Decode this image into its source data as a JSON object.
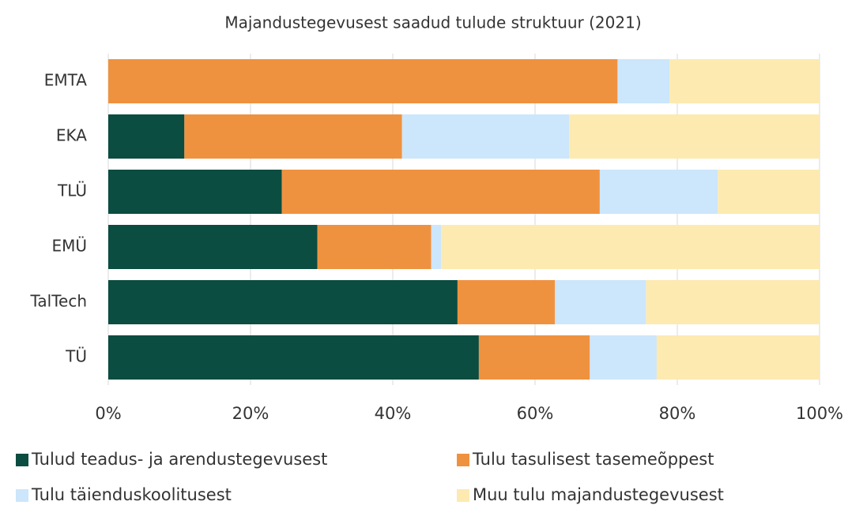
{
  "chart_data": {
    "type": "stacked_barh",
    "title": "Majandustegevusest saadud tulude struktuur (2021)",
    "categories": [
      "EMTA",
      "EKA",
      "TLÜ",
      "EMÜ",
      "TalTech",
      "TÜ"
    ],
    "series": [
      {
        "name": "Tulud teadus- ja arendustegevusest",
        "color": "#0b4d40",
        "values": [
          0,
          10.7,
          24.4,
          29.4,
          49.1,
          52.1
        ]
      },
      {
        "name": "Tulu tasulisest tasemeõppest",
        "color": "#ef923f",
        "values": [
          71.6,
          30.6,
          44.7,
          16.0,
          13.7,
          15.6
        ]
      },
      {
        "name": "Tulu täienduskoolitusest",
        "color": "#cce6fb",
        "values": [
          7.3,
          23.5,
          16.6,
          1.4,
          12.8,
          9.4
        ]
      },
      {
        "name": "Muu tulu majandustegevusest",
        "color": "#fdeab1",
        "values": [
          21.1,
          35.2,
          14.3,
          53.2,
          24.4,
          22.9
        ]
      }
    ],
    "xlim": [
      0,
      100
    ],
    "xticks": [
      {
        "value": 0,
        "label": "0%"
      },
      {
        "value": 20,
        "label": "20%"
      },
      {
        "value": 40,
        "label": "40%"
      },
      {
        "value": 60,
        "label": "60%"
      },
      {
        "value": 80,
        "label": "80%"
      },
      {
        "value": 100,
        "label": "100%"
      }
    ],
    "grid": true
  }
}
